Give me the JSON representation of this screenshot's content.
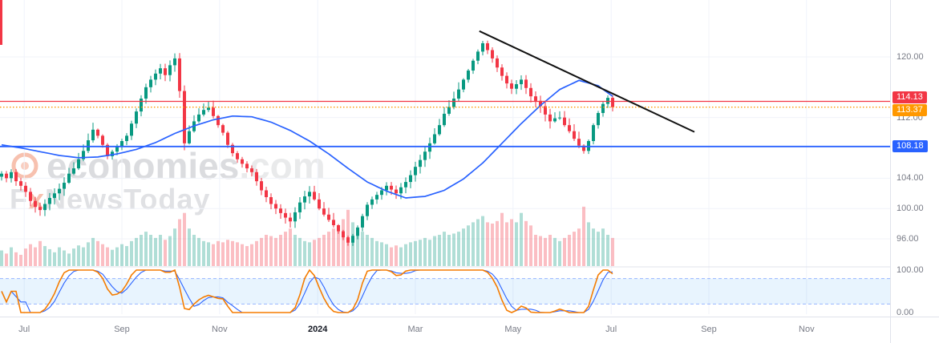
{
  "watermark": {
    "brand": "economies",
    "brand_suffix": ".com",
    "tagline_prefix": "F",
    "tagline_accent": "x",
    "tagline_suffix": "NewsToday"
  },
  "chart_data": {
    "type": "candlestick",
    "x_labels": [
      {
        "label": "Jul",
        "i": 4.7
      },
      {
        "label": "Sep",
        "i": 25
      },
      {
        "label": "Nov",
        "i": 45.3
      },
      {
        "label": "2024",
        "i": 65.7,
        "year": true
      },
      {
        "label": "Mar",
        "i": 86
      },
      {
        "label": "May",
        "i": 106.3
      },
      {
        "label": "Jul",
        "i": 126.7
      },
      {
        "label": "Sep",
        "i": 147
      },
      {
        "label": "Nov",
        "i": 167.3
      }
    ],
    "y_axis": {
      "ticks": [
        {
          "label": "120.00",
          "value": 120
        },
        {
          "label": "112.00",
          "value": 112
        },
        {
          "label": "104.00",
          "value": 104
        },
        {
          "label": "100.00",
          "value": 100
        },
        {
          "label": "96.00",
          "value": 96
        }
      ]
    },
    "levels": [
      {
        "label": "114.13",
        "value": 114.13,
        "color": "#f23645",
        "style": "solid",
        "width": 1.3
      },
      {
        "label": "113.37",
        "value": 113.37,
        "color": "#ff9800",
        "style": "dotted",
        "width": 1.4
      },
      {
        "label": "108.18",
        "value": 108.18,
        "color": "#2962ff",
        "style": "solid",
        "width": 1.8
      }
    ],
    "series": {
      "closes": [
        104.6,
        104.0,
        104.8,
        103.6,
        103.0,
        102.2,
        101.0,
        100.2,
        99.8,
        100.6,
        101.4,
        102.0,
        102.6,
        103.4,
        104.6,
        105.3,
        106.5,
        107.6,
        109.0,
        110.4,
        109.6,
        108.4,
        106.9,
        107.5,
        108.2,
        108.9,
        109.6,
        111.2,
        112.8,
        114.5,
        116.0,
        117.0,
        117.8,
        118.5,
        117.6,
        118.9,
        119.8,
        115.5,
        108.6,
        110.2,
        111.5,
        112.4,
        113.0,
        113.3,
        112.2,
        111.0,
        110.0,
        108.4,
        107.3,
        106.5,
        105.9,
        105.3,
        104.8,
        103.6,
        102.4,
        101.5,
        100.6,
        100.0,
        99.4,
        98.8,
        98.3,
        99.5,
        100.8,
        101.6,
        102.2,
        101.2,
        100.0,
        99.2,
        98.5,
        97.8,
        97.0,
        96.2,
        95.5,
        96.4,
        97.5,
        99.0,
        100.5,
        101.2,
        101.8,
        102.4,
        103.0,
        102.5,
        102.0,
        102.8,
        103.5,
        104.4,
        105.5,
        106.4,
        107.5,
        108.6,
        109.8,
        111.0,
        112.5,
        113.4,
        114.5,
        115.7,
        117.0,
        118.2,
        119.5,
        120.7,
        121.8,
        120.9,
        119.8,
        118.6,
        117.5,
        116.5,
        115.8,
        116.4,
        117.0,
        115.9,
        114.8,
        114.2,
        113.5,
        112.4,
        111.5,
        111.9,
        112.0,
        111.0,
        110.2,
        109.2,
        108.3,
        107.6,
        108.9,
        111.0,
        112.6,
        113.8,
        114.6,
        113.37
      ]
    },
    "ma": {
      "color": "#2962ff",
      "anchor_step": 4,
      "anchors": [
        108.4,
        108.0,
        107.5,
        107.0,
        106.7,
        106.8,
        107.2,
        107.8,
        108.7,
        109.9,
        110.9,
        111.7,
        112.2,
        112.1,
        111.4,
        110.3,
        108.9,
        107.2,
        105.3,
        103.5,
        102.3,
        101.4,
        101.6,
        102.4,
        103.9,
        106.0,
        108.6,
        111.2,
        113.6,
        115.7,
        116.9,
        116.2,
        114.8
      ]
    },
    "volume": [
      0.25,
      0.2,
      0.3,
      0.22,
      0.18,
      0.28,
      0.35,
      0.3,
      0.4,
      0.32,
      0.27,
      0.22,
      0.3,
      0.25,
      0.2,
      0.28,
      0.33,
      0.3,
      0.38,
      0.45,
      0.4,
      0.35,
      0.3,
      0.26,
      0.3,
      0.35,
      0.32,
      0.4,
      0.45,
      0.5,
      0.55,
      0.5,
      0.45,
      0.5,
      0.42,
      0.48,
      0.6,
      0.75,
      0.85,
      0.6,
      0.5,
      0.45,
      0.4,
      0.38,
      0.35,
      0.4,
      0.38,
      0.42,
      0.4,
      0.38,
      0.35,
      0.32,
      0.35,
      0.4,
      0.45,
      0.5,
      0.48,
      0.45,
      0.5,
      0.55,
      0.6,
      0.5,
      0.45,
      0.4,
      0.38,
      0.42,
      0.45,
      0.5,
      0.55,
      0.6,
      0.65,
      0.75,
      0.9,
      0.7,
      0.6,
      0.55,
      0.5,
      0.45,
      0.4,
      0.38,
      0.35,
      0.3,
      0.33,
      0.3,
      0.35,
      0.38,
      0.4,
      0.42,
      0.45,
      0.42,
      0.48,
      0.5,
      0.55,
      0.5,
      0.52,
      0.55,
      0.6,
      0.65,
      0.7,
      0.75,
      0.8,
      0.7,
      0.68,
      0.72,
      0.85,
      0.7,
      0.75,
      0.7,
      0.85,
      0.72,
      0.65,
      0.5,
      0.48,
      0.45,
      0.5,
      0.45,
      0.4,
      0.45,
      0.5,
      0.55,
      0.6,
      0.95,
      0.7,
      0.6,
      0.55,
      0.6,
      0.5,
      0.45
    ],
    "trendline": {
      "i1": 99.3,
      "p1": 123.4,
      "i2": 144,
      "p2": 110.1,
      "color": "#111111"
    },
    "oscillator": {
      "labels": [
        {
          "label": "100.00",
          "value": 100
        },
        {
          "label": "0.00",
          "value": 0
        }
      ],
      "band": [
        20,
        80
      ],
      "band_color": "rgba(33,150,243,0.10)",
      "band_line_color": "rgba(41,98,255,0.45)",
      "k_color": "#f57c00",
      "d_color": "#2962ff"
    },
    "colors": {
      "up": "#089981",
      "down": "#f23645",
      "grid": "#f0f3fa",
      "axis_text": "#787b86",
      "separator": "#e0e3eb"
    },
    "ylim": [
      92.5,
      127.5
    ]
  }
}
